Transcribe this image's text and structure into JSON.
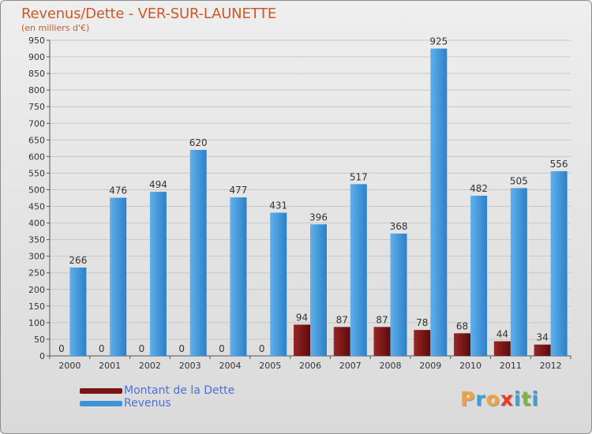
{
  "chart_data": {
    "type": "bar",
    "title": "Revenus/Dette - VER-SUR-LAUNETTE",
    "subtitle": "(en milliers d'€)",
    "categories": [
      "2000",
      "2001",
      "2002",
      "2003",
      "2004",
      "2005",
      "2006",
      "2007",
      "2008",
      "2009",
      "2010",
      "2011",
      "2012"
    ],
    "series": [
      {
        "name": "Montant de la Dette",
        "color": "#7a1515",
        "values": [
          0,
          0,
          0,
          0,
          0,
          0,
          94,
          87,
          87,
          78,
          68,
          44,
          34
        ]
      },
      {
        "name": "Revenus",
        "color": "#3d94d9",
        "values": [
          266,
          476,
          494,
          620,
          477,
          431,
          396,
          517,
          368,
          925,
          482,
          505,
          556
        ]
      }
    ],
    "ylim": [
      0,
      950
    ],
    "yticks": [
      0,
      50,
      100,
      150,
      200,
      250,
      300,
      350,
      400,
      450,
      500,
      550,
      600,
      650,
      700,
      750,
      800,
      850,
      900,
      950
    ],
    "xlabel": "",
    "ylabel": "",
    "grid": true,
    "legend_position": "bottom-left"
  },
  "logo": {
    "letters": [
      "P",
      "r",
      "o",
      "x",
      "i",
      "t",
      "i"
    ],
    "colors": [
      "#f2a23a",
      "#3aa0d8",
      "#f2a23a",
      "#e83a2a",
      "#3aa0d8",
      "#78b83a",
      "#3aa0d8"
    ]
  }
}
